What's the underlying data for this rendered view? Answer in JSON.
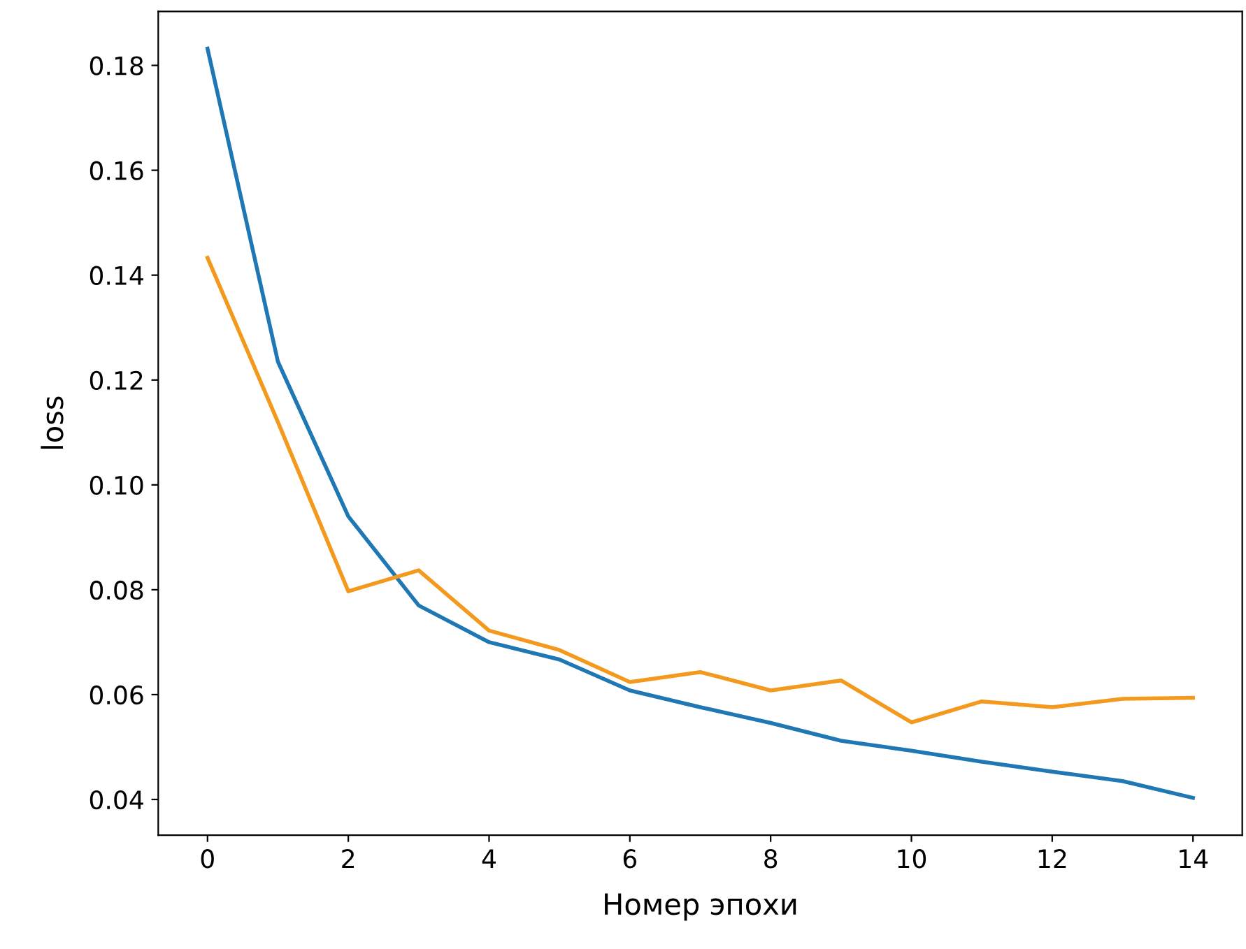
{
  "chart_data": {
    "type": "line",
    "xlabel": "Номер эпохи",
    "ylabel": "loss",
    "x": [
      0,
      1,
      2,
      3,
      4,
      5,
      6,
      7,
      8,
      9,
      10,
      11,
      12,
      13,
      14
    ],
    "series": [
      {
        "color": "#1f77b4",
        "values": [
          0.1832,
          0.1235,
          0.094,
          0.077,
          0.07,
          0.0667,
          0.0608,
          0.0576,
          0.0546,
          0.0512,
          0.0493,
          0.0472,
          0.0453,
          0.0435,
          0.0403
        ]
      },
      {
        "color": "#f39a1e",
        "values": [
          0.1433,
          0.112,
          0.0797,
          0.0837,
          0.0722,
          0.0685,
          0.0624,
          0.0643,
          0.0608,
          0.0627,
          0.0547,
          0.0587,
          0.0576,
          0.0592,
          0.0594
        ]
      }
    ],
    "xlim": [
      -0.7,
      14.7
    ],
    "ylim": [
      0.0332,
      0.1903
    ],
    "xticks": [
      0,
      2,
      4,
      6,
      8,
      10,
      12,
      14
    ],
    "yticks": [
      {
        "value": 0.04,
        "label": "0.04"
      },
      {
        "value": 0.06,
        "label": "0.06"
      },
      {
        "value": 0.08,
        "label": "0.08"
      },
      {
        "value": 0.1,
        "label": "0.10"
      },
      {
        "value": 0.12,
        "label": "0.12"
      },
      {
        "value": 0.14,
        "label": "0.14"
      },
      {
        "value": 0.16,
        "label": "0.16"
      },
      {
        "value": 0.18,
        "label": "0.18"
      }
    ],
    "grid": false
  }
}
